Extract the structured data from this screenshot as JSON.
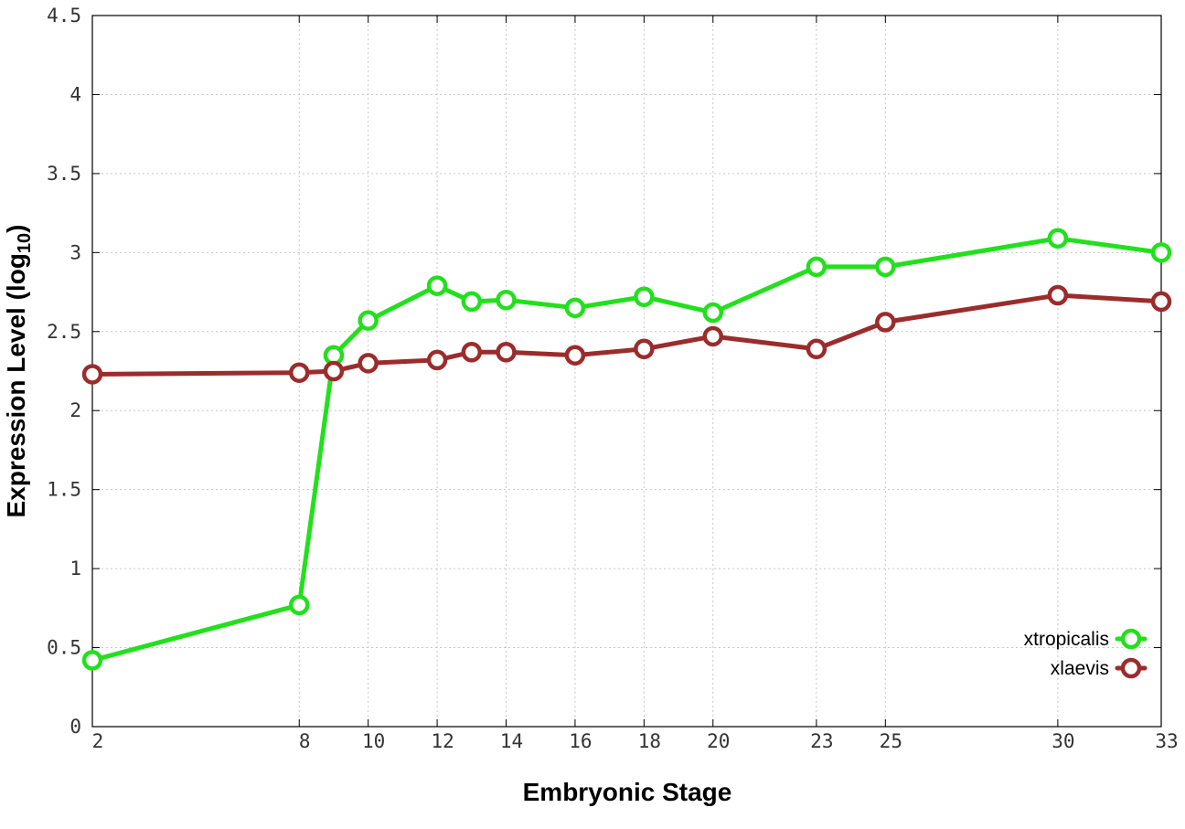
{
  "chart_data": {
    "type": "line",
    "title": "",
    "xlabel": "Embryonic Stage",
    "ylabel_main": "Expression Level (log",
    "ylabel_sub": "10",
    "ylabel_close": ")",
    "x_ticks": [
      2,
      8,
      10,
      12,
      14,
      16,
      18,
      20,
      23,
      25,
      30,
      33
    ],
    "y_ticks": [
      "0",
      "0.5",
      "1",
      "1.5",
      "2",
      "2.5",
      "3",
      "3.5",
      "4",
      "4.5"
    ],
    "xlim": [
      2,
      33
    ],
    "ylim": [
      0,
      4.5
    ],
    "grid": true,
    "legend_position": "bottom-right",
    "series": [
      {
        "name": "xtropicalis",
        "color": "#22e01c",
        "points": [
          {
            "x": 2,
            "y": 0.42
          },
          {
            "x": 8,
            "y": 0.77
          },
          {
            "x": 9,
            "y": 2.35
          },
          {
            "x": 10,
            "y": 2.57
          },
          {
            "x": 12,
            "y": 2.79
          },
          {
            "x": 13,
            "y": 2.69
          },
          {
            "x": 14,
            "y": 2.7
          },
          {
            "x": 16,
            "y": 2.65
          },
          {
            "x": 18,
            "y": 2.72
          },
          {
            "x": 20,
            "y": 2.62
          },
          {
            "x": 23,
            "y": 2.91
          },
          {
            "x": 25,
            "y": 2.91
          },
          {
            "x": 30,
            "y": 3.09
          },
          {
            "x": 33,
            "y": 3.0
          }
        ]
      },
      {
        "name": "xlaevis",
        "color": "#9b2c2c",
        "points": [
          {
            "x": 2,
            "y": 2.23
          },
          {
            "x": 8,
            "y": 2.24
          },
          {
            "x": 9,
            "y": 2.25
          },
          {
            "x": 10,
            "y": 2.3
          },
          {
            "x": 12,
            "y": 2.32
          },
          {
            "x": 13,
            "y": 2.37
          },
          {
            "x": 14,
            "y": 2.37
          },
          {
            "x": 16,
            "y": 2.35
          },
          {
            "x": 18,
            "y": 2.39
          },
          {
            "x": 20,
            "y": 2.47
          },
          {
            "x": 23,
            "y": 2.39
          },
          {
            "x": 25,
            "y": 2.56
          },
          {
            "x": 30,
            "y": 2.73
          },
          {
            "x": 33,
            "y": 2.69
          }
        ]
      }
    ]
  }
}
